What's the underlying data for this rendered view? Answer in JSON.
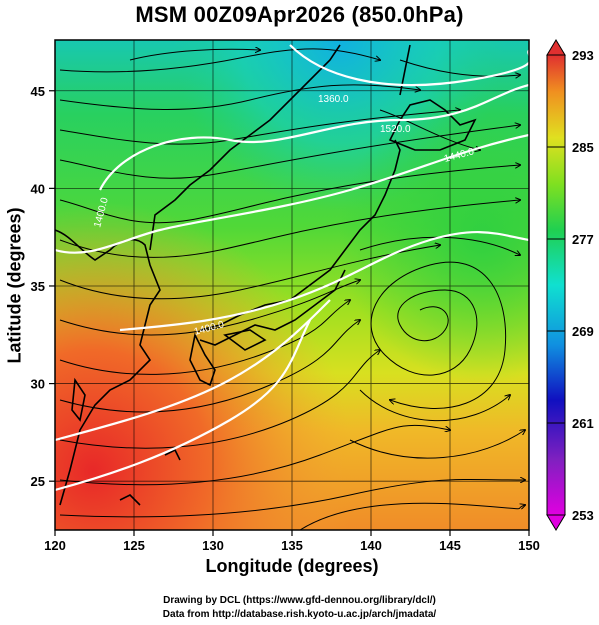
{
  "title": "MSM 00Z09Apr2026 (850.0hPa)",
  "x_axis_label": "Longitude (degrees)",
  "y_axis_label": "Latitude  (degrees)",
  "credit_line1": "Drawing by DCL (https://www.gfd-dennou.org/library/dcl/)",
  "credit_line2": "Data from http://database.rish.kyoto-u.ac.jp/arch/jmadata/",
  "map": {
    "lon_range": [
      120,
      150
    ],
    "lat_range": [
      22.5,
      47.6
    ],
    "x_ticks": [
      120,
      125,
      130,
      135,
      140,
      145,
      150
    ],
    "y_ticks": [
      25,
      30,
      35,
      40,
      45
    ],
    "x_tick_labels": [
      "120",
      "125",
      "130",
      "135",
      "140",
      "145",
      "150"
    ],
    "y_tick_labels": [
      "25",
      "30",
      "35",
      "40",
      "45"
    ],
    "contour_labels": [
      "1360.0",
      "1400.0",
      "1400.0",
      "1440.0",
      "1520.0"
    ],
    "low_pressure_center": {
      "lon": 143.0,
      "lat": 34.5
    }
  },
  "colorbar": {
    "tick_labels": [
      "293",
      "285",
      "277",
      "269",
      "261",
      "253"
    ],
    "min": 253,
    "max": 293,
    "colors": [
      "#e000e0",
      "#1010c0",
      "#1090e0",
      "#10e0d0",
      "#20d050",
      "#80e020",
      "#e0e020",
      "#f09020",
      "#e03030"
    ]
  }
}
